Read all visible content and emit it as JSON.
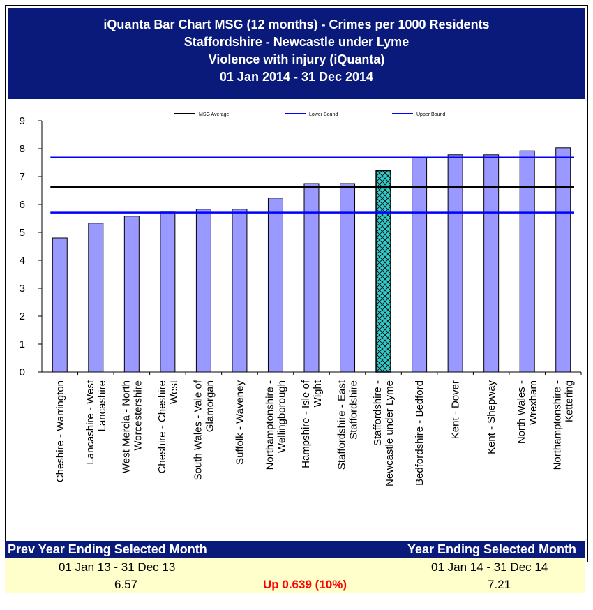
{
  "title": {
    "line1": "iQuanta Bar Chart MSG (12 months) - Crimes per 1000 Residents",
    "line2": "Staffordshire - Newcastle under Lyme",
    "line3": "Violence with injury (iQuanta)",
    "line4": "01 Jan 2014 - 31 Dec 2014"
  },
  "chart_data": {
    "type": "bar",
    "categories": [
      "Cheshire - Warrington",
      "Lancashire - West Lancashire",
      "West Mercia - North Worcestershire",
      "Cheshire - Cheshire West",
      "South Wales - Vale of Glamorgan",
      "Suffolk - Waveney",
      "Northamptonshire - Wellingborough",
      "Hampshire - Isle of Wight",
      "Staffordshire - East Staffordshire",
      "Staffordshire - Newcastle under Lyme",
      "Bedfordshire - Bedford",
      "Kent - Dover",
      "Kent - Shepway",
      "North Wales - Wrexham",
      "Northamptonshire - Kettering"
    ],
    "category_lines": [
      [
        "Cheshire - Warrington"
      ],
      [
        "Lancashire - West",
        "Lancashire"
      ],
      [
        "West Mercia - North",
        "Worcestershire"
      ],
      [
        "Cheshire - Cheshire",
        "West"
      ],
      [
        "South Wales - Vale of",
        "Glamorgan"
      ],
      [
        "Suffolk - Waveney"
      ],
      [
        "Northamptonshire -",
        "Wellingborough"
      ],
      [
        "Hampshire - Isle of",
        "Wight"
      ],
      [
        "Staffordshire - East",
        "Staffordshire"
      ],
      [
        "Staffordshire -",
        "Newcastle under Lyme"
      ],
      [
        "Bedfordshire - Bedford"
      ],
      [
        "Kent - Dover"
      ],
      [
        "Kent - Shepway"
      ],
      [
        "North Wales -",
        "Wrexham"
      ],
      [
        "Northamptonshire -",
        "Kettering"
      ]
    ],
    "values": [
      4.8,
      5.33,
      5.58,
      5.73,
      5.83,
      5.83,
      6.23,
      6.75,
      6.75,
      7.21,
      7.68,
      7.78,
      7.78,
      7.92,
      8.03
    ],
    "highlight_index": 9,
    "bar_color": "#9999ff",
    "highlight_color": "#33cccc",
    "ylim": [
      0,
      9
    ],
    "yticks": [
      "0",
      "1",
      "2",
      "3",
      "4",
      "5",
      "6",
      "7",
      "8",
      "9"
    ],
    "lines": [
      {
        "name": "MSG Average",
        "value": 6.62,
        "color": "#000000"
      },
      {
        "name": "Lower Bound",
        "value": 5.71,
        "color": "#0000ff"
      },
      {
        "name": "Upper Bound",
        "value": 7.68,
        "color": "#0000ff"
      }
    ],
    "legend_position": "top",
    "grid": false
  },
  "summary": {
    "prev_header": "Prev Year Ending Selected Month",
    "curr_header": "Year Ending Selected Month",
    "prev_period": "01 Jan 13 - 31 Dec 13",
    "curr_period": "01 Jan 14 - 31 Dec 14",
    "prev_value": "6.57",
    "change": "Up 0.639 (10%)",
    "curr_value": "7.21"
  }
}
